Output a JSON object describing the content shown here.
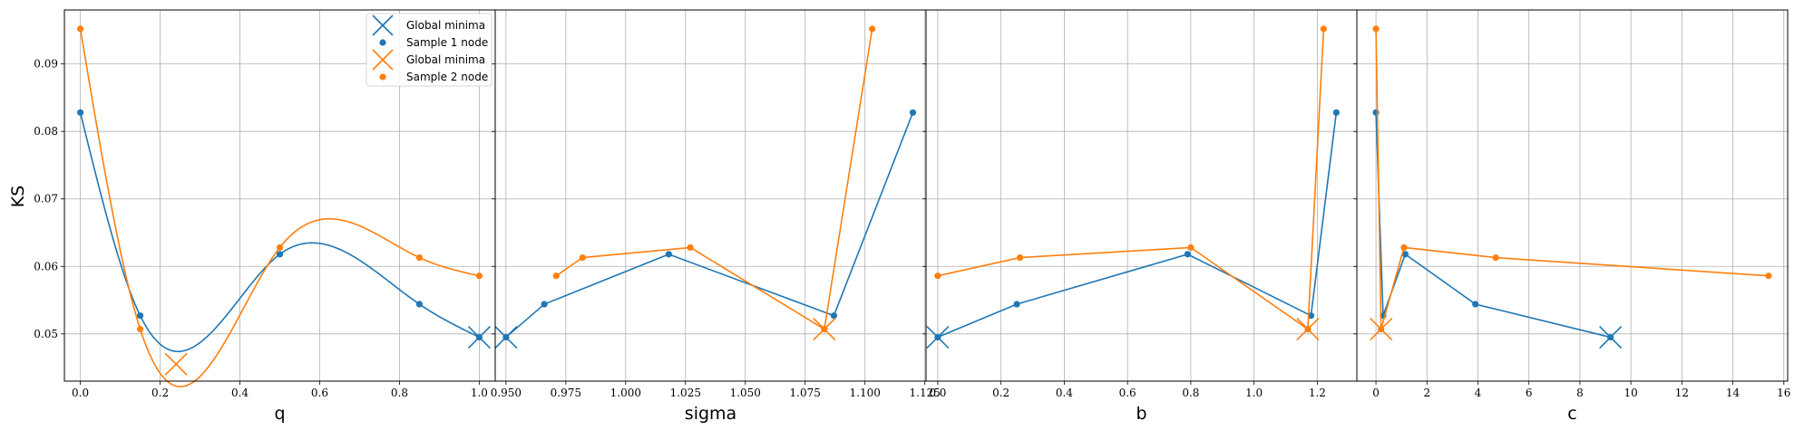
{
  "chart_data": {
    "type": "line",
    "ylabel": "KS",
    "ylim": [
      0.043,
      0.098
    ],
    "yticks": [
      0.05,
      0.06,
      0.07,
      0.08,
      0.09
    ],
    "ytick_labels": [
      "0.05",
      "0.06",
      "0.07",
      "0.08",
      "0.09"
    ],
    "grid": true,
    "legend": {
      "placement": "top-right of first panel",
      "entries": [
        {
          "label": "Global minima",
          "kind": "x-marker",
          "color": "#1f77b4"
        },
        {
          "label": "Sample 1 node",
          "kind": "dot",
          "color": "#1f77b4"
        },
        {
          "label": "Global minima",
          "kind": "x-marker",
          "color": "#ff7f0e"
        },
        {
          "label": "Sample 2 node",
          "kind": "dot",
          "color": "#ff7f0e"
        }
      ]
    },
    "panels": [
      {
        "xlabel": "q",
        "xlim": [
          -0.04,
          1.04
        ],
        "xticks": [
          0.0,
          0.2,
          0.4,
          0.6,
          0.8,
          1.0
        ],
        "xtick_labels": [
          "0.0",
          "0.2",
          "0.4",
          "0.6",
          "0.8",
          "1.0"
        ],
        "curve": "smooth",
        "series": [
          {
            "color": "#1f77b4",
            "x": [
              0.0,
              0.15,
              0.5,
              0.85,
              1.0
            ],
            "y": [
              0.0828,
              0.0527,
              0.0618,
              0.0544,
              0.0495
            ],
            "minimum": [
              1.0,
              0.0495
            ]
          },
          {
            "color": "#ff7f0e",
            "x": [
              0.0,
              0.15,
              0.5,
              0.85,
              1.0
            ],
            "y": [
              0.0952,
              0.0507,
              0.0628,
              0.0613,
              0.0586
            ],
            "minimum": [
              0.24,
              0.0455
            ]
          }
        ]
      },
      {
        "xlabel": "sigma",
        "xlim": [
          0.9455,
          1.1255
        ],
        "xticks": [
          0.95,
          0.975,
          1.0,
          1.025,
          1.05,
          1.075,
          1.1,
          1.125
        ],
        "xtick_labels": [
          "0.950",
          "0.975",
          "1.000",
          "1.025",
          "1.050",
          "1.075",
          "1.100",
          "1.125"
        ],
        "curve": "straight",
        "series": [
          {
            "color": "#1f77b4",
            "x": [
              0.95,
              0.966,
              1.018,
              1.087,
              1.12
            ],
            "y": [
              0.0495,
              0.0544,
              0.0618,
              0.0527,
              0.0828
            ],
            "minimum": [
              0.95,
              0.0495
            ]
          },
          {
            "color": "#ff7f0e",
            "x": [
              0.971,
              0.982,
              1.027,
              1.083,
              1.103
            ],
            "y": [
              0.0586,
              0.0613,
              0.0628,
              0.0507,
              0.0952
            ],
            "minimum": [
              1.083,
              0.0507
            ]
          }
        ]
      },
      {
        "xlabel": "b",
        "xlim": [
          -0.037,
          1.325
        ],
        "xticks": [
          0.0,
          0.2,
          0.4,
          0.6,
          0.8,
          1.0,
          1.2
        ],
        "xtick_labels": [
          "0.0",
          "0.2",
          "0.4",
          "0.6",
          "0.8",
          "1.0",
          "1.2"
        ],
        "curve": "straight",
        "series": [
          {
            "color": "#1f77b4",
            "x": [
              0.0,
              0.25,
              0.79,
              1.18,
              1.26
            ],
            "y": [
              0.0495,
              0.0544,
              0.0618,
              0.0527,
              0.0828
            ],
            "minimum": [
              0.0,
              0.0495
            ]
          },
          {
            "color": "#ff7f0e",
            "x": [
              0.0,
              0.26,
              0.8,
              1.17,
              1.22
            ],
            "y": [
              0.0586,
              0.0613,
              0.0628,
              0.0507,
              0.0952
            ],
            "minimum": [
              1.17,
              0.0507
            ]
          }
        ]
      },
      {
        "xlabel": "c",
        "xlim": [
          -0.75,
          16.15
        ],
        "xticks": [
          0,
          2,
          4,
          6,
          8,
          10,
          12,
          14,
          16
        ],
        "xtick_labels": [
          "0",
          "2",
          "4",
          "6",
          "8",
          "10",
          "12",
          "14",
          "16"
        ],
        "curve": "straight",
        "series": [
          {
            "color": "#1f77b4",
            "x": [
              0.0,
              0.28,
              1.15,
              3.9,
              9.2
            ],
            "y": [
              0.0828,
              0.0527,
              0.0618,
              0.0544,
              0.0495
            ],
            "minimum": [
              9.2,
              0.0495
            ]
          },
          {
            "color": "#ff7f0e",
            "x": [
              0.0,
              0.2,
              1.1,
              4.7,
              15.4
            ],
            "y": [
              0.0952,
              0.0507,
              0.0628,
              0.0613,
              0.0586
            ],
            "minimum": [
              0.2,
              0.0507
            ]
          }
        ]
      }
    ]
  }
}
